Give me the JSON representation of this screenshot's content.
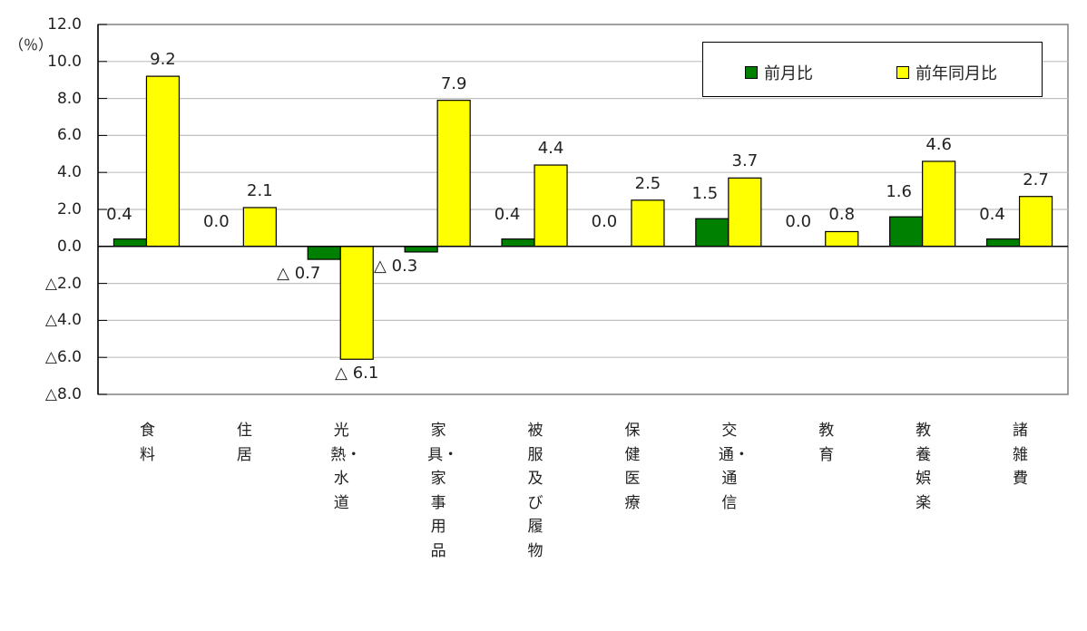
{
  "chart_data": {
    "type": "bar",
    "title": "",
    "xlabel": "",
    "ylabel": "（％）",
    "ylim": [
      -8.0,
      12.0
    ],
    "yticks": [
      "12.0",
      "10.0",
      "8.0",
      "6.0",
      "4.0",
      "2.0",
      "0.0",
      "△2.0",
      "△4.0",
      "△6.0",
      "△8.0"
    ],
    "ytick_values": [
      12,
      10,
      8,
      6,
      4,
      2,
      0,
      -2,
      -4,
      -6,
      -8
    ],
    "grid": true,
    "legend_position": "top-right",
    "categories": [
      "食料",
      "住居",
      "光熱・水道",
      "家具・家事用品",
      "被服及び履物",
      "保健医療",
      "交通・通信",
      "教育",
      "教養娯楽",
      "諸雑費"
    ],
    "series": [
      {
        "name": "前月比",
        "color": "#008000",
        "values": [
          0.4,
          0.0,
          -0.7,
          -0.3,
          0.4,
          0.0,
          1.5,
          0.0,
          1.6,
          0.4
        ],
        "labels": [
          "0.4",
          "0.0",
          "△ 0.7",
          "△ 0.3",
          "0.4",
          "0.0",
          "1.5",
          "0.0",
          "1.6",
          "0.4"
        ]
      },
      {
        "name": "前年同月比",
        "color": "#ffff00",
        "values": [
          9.2,
          2.1,
          -6.1,
          7.9,
          4.4,
          2.5,
          3.7,
          0.8,
          4.6,
          2.7
        ],
        "labels": [
          "9.2",
          "2.1",
          "△ 6.1",
          "7.9",
          "4.4",
          "2.5",
          "3.7",
          "0.8",
          "4.6",
          "2.7"
        ]
      }
    ]
  },
  "axis": {
    "unit_label": "（％）"
  },
  "legend": {
    "items": [
      {
        "label": "前月比",
        "color": "#008000"
      },
      {
        "label": "前年同月比",
        "color": "#ffff00"
      }
    ]
  },
  "colors": {
    "grid": "#c0c0c0",
    "axis": "#000000",
    "frame": "#808080"
  }
}
